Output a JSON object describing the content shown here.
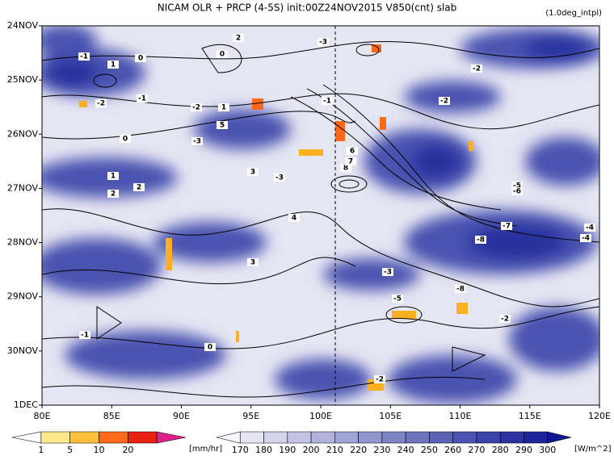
{
  "chart_data": {
    "type": "hovmoller",
    "title": "NICAM  OLR + PRCP (4-5S) init:00Z24NOV2015 V850(cnt) slab",
    "subtitle": "(1.0deg_intpl)",
    "xlim": [
      80,
      120
    ],
    "xticks": [
      {
        "value": 80,
        "label": "80E"
      },
      {
        "value": 85,
        "label": "85E"
      },
      {
        "value": 90,
        "label": "90E"
      },
      {
        "value": 95,
        "label": "95E"
      },
      {
        "value": 100,
        "label": "100E"
      },
      {
        "value": 105,
        "label": "105E"
      },
      {
        "value": 110,
        "label": "110E"
      },
      {
        "value": 115,
        "label": "115E"
      },
      {
        "value": 120,
        "label": "120E"
      }
    ],
    "y_categories": [
      "24NOV",
      "25NOV",
      "26NOV",
      "27NOV",
      "28NOV",
      "29NOV",
      "30NOV",
      "1DEC"
    ],
    "contour_labels": [
      "-1",
      "1",
      "0",
      "-2",
      "-1",
      "-2",
      "1",
      "5",
      "0",
      "-3",
      "3",
      "-3",
      "1",
      "2",
      "2",
      "4",
      "-3",
      "0",
      "2",
      "-1",
      "-5",
      "-8",
      "-2",
      "-7",
      "-4",
      "-2",
      "-3",
      "-5",
      "-2",
      "0",
      "-1",
      "-2",
      "3",
      "6",
      "8",
      "7",
      "-4",
      "-6",
      "-8"
    ],
    "precip_colorbar": {
      "labels": [
        "1",
        "5",
        "10",
        "20"
      ],
      "unit": "[mm/hr]",
      "colors": [
        "#ffffff",
        "#ffe98c",
        "#ffbf3a",
        "#ff6a1a",
        "#e8200e",
        "#e0208a"
      ]
    },
    "olr_colorbar": {
      "labels": [
        "170",
        "180",
        "190",
        "200",
        "210",
        "220",
        "230",
        "240",
        "250",
        "260",
        "270",
        "280",
        "290",
        "300"
      ],
      "unit": "[W/m^2]",
      "colors": [
        "#f6f6fb",
        "#e4e4f2",
        "#d3d4ec",
        "#c2c4e4",
        "#b1b3dd",
        "#a0a3d5",
        "#8f93ce",
        "#7e83c6",
        "#6d73bf",
        "#5c63b7",
        "#4b53b0",
        "#3a43a8",
        "#2a33a1",
        "#1b2499",
        "#0e1890"
      ]
    }
  }
}
